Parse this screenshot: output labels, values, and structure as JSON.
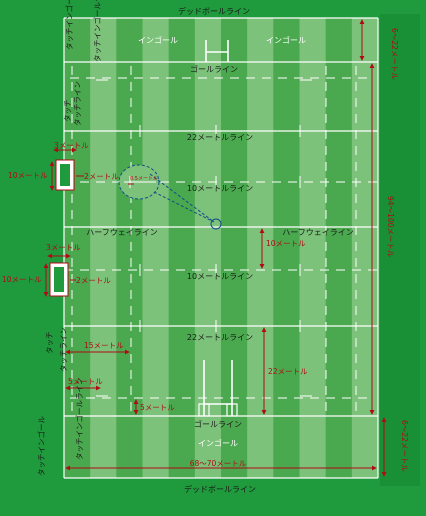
{
  "lines": {
    "dead_ball": "デッドボールライン",
    "goal": "ゴールライン",
    "m22": "22メートルライン",
    "m10": "10メートルライン",
    "half": "ハーフウェイライン",
    "in_goal": "インゴール",
    "touch": "タッチ",
    "touch_line": "タッチライン",
    "touch_in_goal": "タッチインゴール",
    "touch_in_goal_line": "タッチインゴールライン"
  },
  "dims": {
    "in_goal_depth": "6～22メートル",
    "length": "94～100メートル",
    "width": "68～70メートル",
    "m22": "22メートル",
    "m15": "15メートル",
    "m10": "10メートル",
    "m5": "5メートル",
    "m3": "3メートル",
    "m2": "2メートル",
    "m05": "0.5メートル"
  },
  "colors": {
    "outer": "#1f9a3c",
    "stripe_dark": "#4aa84e",
    "stripe_light": "#7cc27a",
    "line": "#ffffff",
    "dim": "#b00a16"
  }
}
